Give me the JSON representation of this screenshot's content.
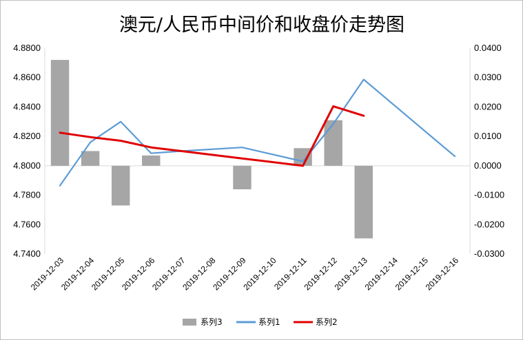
{
  "chart_data": {
    "type": "bar",
    "title": "澳元/人民币中间价和收盘价走势图",
    "categories": [
      "2019-12-03",
      "2019-12-04",
      "2019-12-05",
      "2019-12-06",
      "2019-12-07",
      "2019-12-08",
      "2019-12-09",
      "2019-12-10",
      "2019-12-11",
      "2019-12-12",
      "2019-12-13",
      "2019-12-14",
      "2019-12-15",
      "2019-12-16"
    ],
    "y_left": {
      "range": [
        4.74,
        4.88
      ],
      "ticks": [
        "4.8800",
        "4.8600",
        "4.8400",
        "4.8200",
        "4.8000",
        "4.7800",
        "4.7600",
        "4.7400"
      ]
    },
    "y_right": {
      "range": [
        -0.03,
        0.04
      ],
      "ticks": [
        "0.0400",
        "0.0300",
        "0.0200",
        "0.0100",
        "0.0000",
        "-0.0100",
        "-0.0200",
        "-0.0300"
      ]
    },
    "series": [
      {
        "name": "系列3",
        "type": "bar",
        "axis": "right",
        "color": "#a6a6a6",
        "values": [
          0.036,
          0.005,
          -0.0135,
          0.0035,
          null,
          null,
          -0.008,
          null,
          0.006,
          0.0155,
          -0.0247,
          null,
          null,
          null
        ]
      },
      {
        "name": "系列1",
        "type": "line",
        "axis": "left",
        "color": "#5b9bd5",
        "values": [
          4.7865,
          4.816,
          4.83,
          4.8085,
          4.81,
          null,
          4.8125,
          null,
          4.803,
          4.8285,
          4.8587,
          null,
          null,
          4.8065
        ]
      },
      {
        "name": "系列2",
        "type": "line",
        "axis": "left",
        "color": "#e00000",
        "values": [
          4.8225,
          4.8195,
          4.817,
          4.8125,
          4.81,
          null,
          4.805,
          null,
          4.8,
          4.8405,
          4.834,
          null,
          null,
          null
        ]
      }
    ],
    "legend_position": "bottom",
    "grid": false
  },
  "legend": [
    {
      "label": "系列3",
      "color": "#a6a6a6",
      "kind": "bar"
    },
    {
      "label": "系列1",
      "color": "#5b9bd5",
      "kind": "line"
    },
    {
      "label": "系列2",
      "color": "#e00000",
      "kind": "line"
    }
  ]
}
